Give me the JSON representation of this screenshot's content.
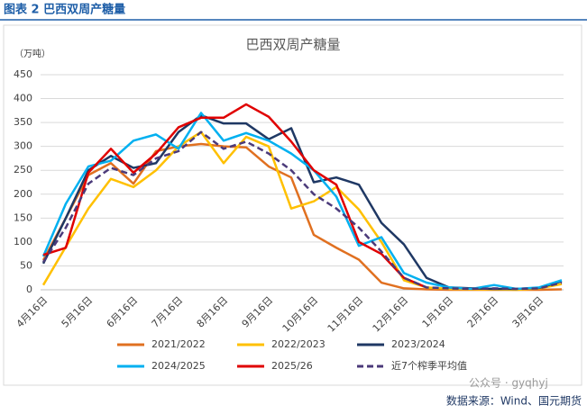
{
  "header": {
    "title": "图表 2  巴西双周产糖量"
  },
  "footer": {
    "source": "数据来源：Wind、国元期货",
    "watermark": "公众号 · gyqhyj"
  },
  "chart_data": {
    "type": "line",
    "title": "巴西双周产糖量",
    "y_label": "（万吨）",
    "categories": [
      "4月16日",
      null,
      "5月16日",
      null,
      "6月16日",
      null,
      "7月16日",
      null,
      "8月16日",
      null,
      "9月16日",
      null,
      "10月16日",
      null,
      "11月16日",
      null,
      "12月16日",
      null,
      "1月16日",
      null,
      "2月16日",
      null,
      "3月16日",
      null
    ],
    "ylim": [
      0,
      450
    ],
    "yticks": [
      0,
      50,
      100,
      150,
      200,
      250,
      300,
      350,
      400,
      450
    ],
    "grid": true,
    "series": [
      {
        "name": "2021/2022",
        "color": "#e07020",
        "values": [
          62,
          150,
          240,
          265,
          222,
          290,
          300,
          305,
          300,
          298,
          258,
          235,
          115,
          88,
          63,
          15,
          3,
          1,
          0,
          0,
          0,
          0,
          0,
          1
        ]
      },
      {
        "name": "2022/2023",
        "color": "#ffc000",
        "values": [
          10,
          90,
          170,
          232,
          215,
          250,
          300,
          330,
          265,
          320,
          300,
          170,
          185,
          215,
          168,
          100,
          20,
          5,
          2,
          1,
          1,
          0,
          3,
          12
        ]
      },
      {
        "name": "2023/2024",
        "color": "#1f3864",
        "values": [
          55,
          150,
          250,
          280,
          255,
          265,
          330,
          365,
          348,
          348,
          315,
          338,
          225,
          235,
          220,
          140,
          95,
          25,
          5,
          3,
          2,
          2,
          4,
          18
        ]
      },
      {
        "name": "2024/2025",
        "color": "#00b0f0",
        "values": [
          70,
          180,
          258,
          270,
          312,
          325,
          295,
          370,
          312,
          328,
          312,
          285,
          250,
          195,
          92,
          110,
          35,
          15,
          5,
          2,
          10,
          2,
          5,
          20
        ]
      },
      {
        "name": "2025/26",
        "color": "#e00000",
        "values": [
          73,
          88,
          245,
          295,
          245,
          285,
          340,
          360,
          360,
          388,
          362,
          310,
          250,
          220,
          100,
          75,
          25,
          5,
          null,
          null,
          null,
          null,
          null,
          null
        ]
      },
      {
        "name": "近7个榨季平均值",
        "color": "#4b3a7a",
        "dash": true,
        "values": [
          58,
          130,
          222,
          255,
          240,
          275,
          290,
          330,
          295,
          310,
          285,
          250,
          200,
          170,
          130,
          80,
          25,
          5,
          3,
          2,
          3,
          2,
          3,
          15
        ]
      }
    ]
  }
}
